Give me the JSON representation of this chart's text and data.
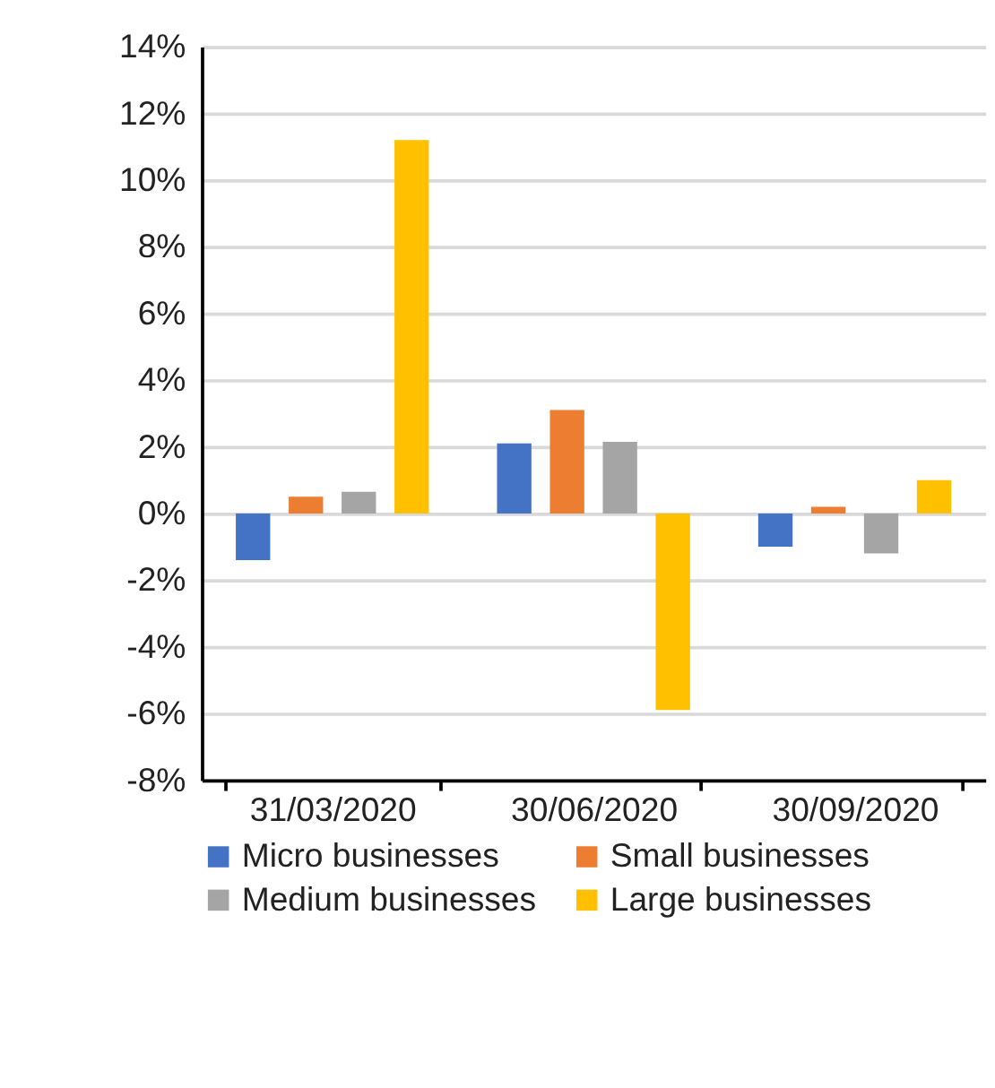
{
  "chart_data": {
    "type": "bar",
    "categories": [
      "31/03/2020",
      "30/06/2020",
      "30/09/2020"
    ],
    "series": [
      {
        "name": "Micro businesses",
        "color": "#4472c4",
        "values": [
          -1.4,
          2.1,
          -1.0
        ]
      },
      {
        "name": "Small businesses",
        "color": "#ed7d31",
        "values": [
          0.5,
          3.1,
          0.2
        ]
      },
      {
        "name": "Medium businesses",
        "color": "#a5a5a5",
        "values": [
          0.65,
          2.15,
          -1.2
        ]
      },
      {
        "name": "Large businesses",
        "color": "#ffc000",
        "values": [
          11.2,
          -5.9,
          1.0
        ]
      }
    ],
    "ylim": [
      -8,
      14
    ],
    "yticks": [
      {
        "value": -8,
        "label": "-8%"
      },
      {
        "value": -6,
        "label": "-6%"
      },
      {
        "value": -4,
        "label": "-4%"
      },
      {
        "value": -2,
        "label": "-2%"
      },
      {
        "value": 0,
        "label": "0%"
      },
      {
        "value": 2,
        "label": "2%"
      },
      {
        "value": 4,
        "label": "4%"
      },
      {
        "value": 6,
        "label": "6%"
      },
      {
        "value": 8,
        "label": "8%"
      },
      {
        "value": 10,
        "label": "10%"
      },
      {
        "value": 12,
        "label": "12%"
      },
      {
        "value": 14,
        "label": "14%"
      }
    ],
    "grid": "y",
    "legend": "bottom"
  }
}
